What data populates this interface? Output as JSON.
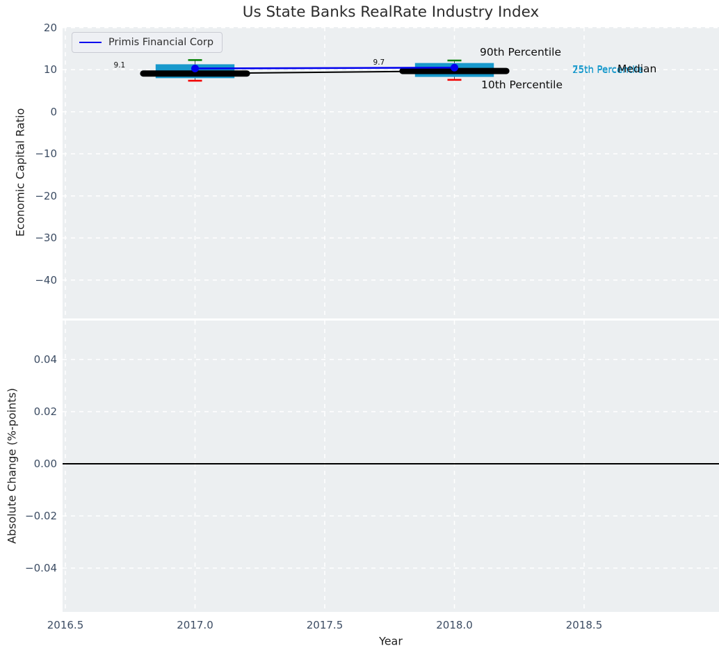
{
  "title": "Us State Banks RealRate Industry Index",
  "legend": {
    "label": "Primis Financial Corp"
  },
  "axes": {
    "top": {
      "ylabel": "Economic Capital Ratio",
      "ytick_labels": [
        "20",
        "10",
        "0",
        "−10",
        "−20",
        "−30",
        "−40"
      ],
      "ytick_values": [
        20,
        10,
        0,
        -10,
        -20,
        -30,
        -40
      ]
    },
    "bottom": {
      "ylabel": "Absolute Change (%-points)",
      "ytick_labels": [
        "0.04",
        "0.02",
        "0.00",
        "−0.02",
        "−0.04"
      ],
      "ytick_values": [
        0.04,
        0.02,
        0,
        -0.02,
        -0.04
      ]
    },
    "x": {
      "label": "Year",
      "tick_labels": [
        "2016.5",
        "2017.0",
        "2017.5",
        "2018.0",
        "2018.5"
      ],
      "tick_values": [
        2016.5,
        2017,
        2017.5,
        2018,
        2018.5
      ]
    }
  },
  "annotations": {
    "p90": "90th Percentile",
    "p10": "10th Percentile",
    "p75": "75th Percentile",
    "p25": "25th Percentile",
    "median": "Median"
  },
  "colors": {
    "box": "#1899cc",
    "p90_cap": "#008000",
    "p10_cap": "#f20000",
    "median": "#000000",
    "company_line": "#0202ee",
    "plot_bg": "#eceff1",
    "grid": "#ffffff",
    "tick_text": "#3c4c63"
  },
  "chart_data": {
    "type": "boxplot",
    "title": "Us State Banks RealRate Industry Index",
    "xlabel": "Year",
    "x": [
      2017,
      2018
    ],
    "xlim": [
      2016.49,
      2019.02
    ],
    "grid": true,
    "legend_position": "upper left",
    "top_panel": {
      "ylabel": "Economic Capital Ratio",
      "ylim": [
        -49.5,
        20.1
      ],
      "company": {
        "name": "Primis Financial Corp",
        "values": [
          10.3,
          10.5
        ]
      },
      "median": {
        "values": [
          9.1,
          9.7
        ],
        "labels": [
          "9.1",
          "9.7"
        ]
      },
      "p90": {
        "values": [
          12.3,
          12.2
        ]
      },
      "p75": {
        "values": [
          11.3,
          11.6
        ]
      },
      "p25": {
        "values": [
          8.0,
          8.3
        ]
      },
      "p10": {
        "values": [
          7.4,
          7.6
        ]
      }
    },
    "bottom_panel": {
      "ylabel": "Absolute Change (%-points)",
      "ylim": [
        -0.057,
        0.055
      ],
      "zero_line": 0.0,
      "series": []
    }
  }
}
